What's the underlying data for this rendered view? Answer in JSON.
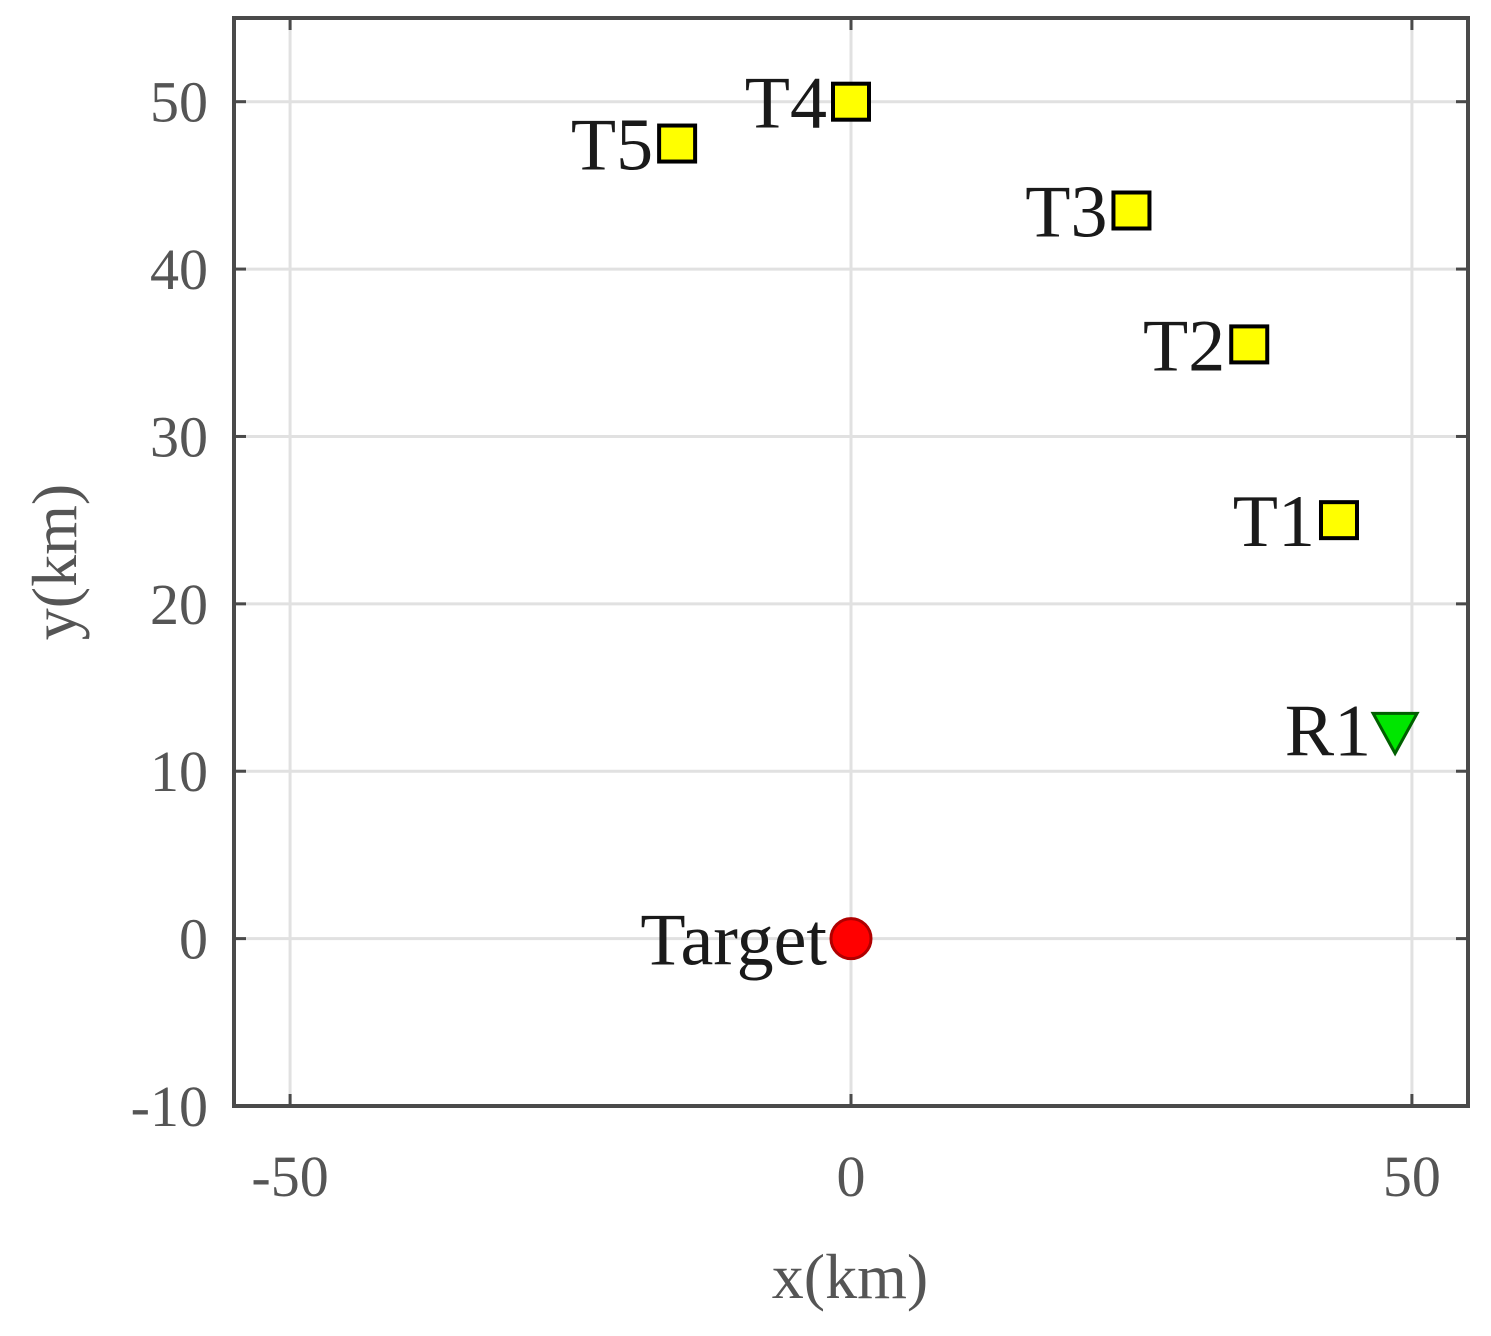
{
  "chart_data": {
    "type": "scatter",
    "xlabel": "x(km)",
    "ylabel": "y(km)",
    "xlim": [
      -55,
      55
    ],
    "ylim": [
      -10,
      55
    ],
    "xticks": [
      -50,
      0,
      50
    ],
    "yticks": [
      -10,
      0,
      10,
      20,
      30,
      40,
      50
    ],
    "xtick_labels": [
      "-50",
      "0",
      "50"
    ],
    "ytick_labels": [
      "-10",
      "0",
      "10",
      "20",
      "30",
      "40",
      "50"
    ],
    "grid": true,
    "points": [
      {
        "label": "T1",
        "x": 43.5,
        "y": 25,
        "marker": "square",
        "color": "#ffff00"
      },
      {
        "label": "T2",
        "x": 35.5,
        "y": 35.5,
        "marker": "square",
        "color": "#ffff00"
      },
      {
        "label": "T3",
        "x": 25,
        "y": 43.5,
        "marker": "square",
        "color": "#ffff00"
      },
      {
        "label": "T4",
        "x": 0,
        "y": 50,
        "marker": "square",
        "color": "#ffff00"
      },
      {
        "label": "T5",
        "x": -15.5,
        "y": 47.5,
        "marker": "square",
        "color": "#ffff00"
      },
      {
        "label": "R1",
        "x": 48.5,
        "y": 12.5,
        "marker": "triangle-down",
        "color": "#00e600"
      },
      {
        "label": "Target",
        "x": 0,
        "y": 0,
        "marker": "circle",
        "color": "#ff0000"
      }
    ]
  }
}
